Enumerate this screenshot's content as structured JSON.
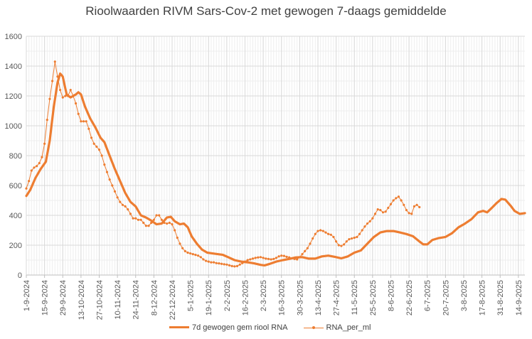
{
  "chart_data": {
    "type": "line",
    "title": "Rioolwaarden RIVM Sars-Cov-2 met gewogen 7-daags gemiddelde",
    "xlabel": "",
    "ylabel": "",
    "ylim": [
      0,
      1600
    ],
    "yticks": [
      0,
      200,
      400,
      600,
      800,
      1000,
      1200,
      1400,
      1600
    ],
    "xlim": [
      "1-9-2024",
      "19-9-2025"
    ],
    "xtick_labels": [
      "1-9-2024",
      "15-9-2024",
      "29-9-2024",
      "13-10-2024",
      "27-10-2024",
      "10-11-2024",
      "24-11-2024",
      "8-12-2024",
      "22-12-2024",
      "5-1-2025",
      "19-1-2025",
      "2-2-2025",
      "16-2-2025",
      "2-3-2025",
      "16-3-2025",
      "30-3-2025",
      "13-4-2025",
      "27-4-2025",
      "11-5-2025",
      "25-5-2025",
      "8-6-2025",
      "22-6-2025",
      "6-7-2025",
      "20-7-2025",
      "3-8-2025",
      "17-8-2025",
      "31-8-2025",
      "14-9-2025"
    ],
    "grid": true,
    "legend_position": "bottom",
    "series": [
      {
        "name": "7d gewogen gem riool RNA",
        "color": "#ED7D31",
        "marker": "none",
        "points": [
          [
            "1-9-2024",
            530
          ],
          [
            "4-9-2024",
            570
          ],
          [
            "8-9-2024",
            650
          ],
          [
            "12-9-2024",
            710
          ],
          [
            "16-9-2024",
            760
          ],
          [
            "19-9-2024",
            900
          ],
          [
            "22-9-2024",
            1120
          ],
          [
            "25-9-2024",
            1290
          ],
          [
            "27-9-2024",
            1350
          ],
          [
            "29-9-2024",
            1330
          ],
          [
            "2-10-2024",
            1210
          ],
          [
            "5-10-2024",
            1190
          ],
          [
            "9-10-2024",
            1210
          ],
          [
            "11-10-2024",
            1225
          ],
          [
            "13-10-2024",
            1210
          ],
          [
            "16-10-2024",
            1130
          ],
          [
            "20-10-2024",
            1050
          ],
          [
            "24-10-2024",
            990
          ],
          [
            "28-10-2024",
            920
          ],
          [
            "31-10-2024",
            890
          ],
          [
            "4-11-2024",
            800
          ],
          [
            "8-11-2024",
            710
          ],
          [
            "12-11-2024",
            630
          ],
          [
            "16-11-2024",
            550
          ],
          [
            "20-11-2024",
            490
          ],
          [
            "24-11-2024",
            460
          ],
          [
            "28-11-2024",
            400
          ],
          [
            "2-12-2024",
            385
          ],
          [
            "6-12-2024",
            365
          ],
          [
            "10-12-2024",
            340
          ],
          [
            "14-12-2024",
            345
          ],
          [
            "18-12-2024",
            385
          ],
          [
            "21-12-2024",
            390
          ],
          [
            "24-12-2024",
            360
          ],
          [
            "28-12-2024",
            340
          ],
          [
            "31-12-2024",
            345
          ],
          [
            "3-1-2025",
            320
          ],
          [
            "6-1-2025",
            260
          ],
          [
            "10-1-2025",
            210
          ],
          [
            "14-1-2025",
            170
          ],
          [
            "18-1-2025",
            150
          ],
          [
            "22-1-2025",
            145
          ],
          [
            "26-1-2025",
            140
          ],
          [
            "30-1-2025",
            135
          ],
          [
            "3-2-2025",
            120
          ],
          [
            "8-2-2025",
            100
          ],
          [
            "13-2-2025",
            90
          ],
          [
            "18-2-2025",
            85
          ],
          [
            "23-2-2025",
            78
          ],
          [
            "28-2-2025",
            68
          ],
          [
            "3-3-2025",
            65
          ],
          [
            "7-3-2025",
            75
          ],
          [
            "12-3-2025",
            90
          ],
          [
            "17-3-2025",
            100
          ],
          [
            "22-3-2025",
            108
          ],
          [
            "27-3-2025",
            118
          ],
          [
            "1-4-2025",
            120
          ],
          [
            "6-4-2025",
            110
          ],
          [
            "11-4-2025",
            110
          ],
          [
            "16-4-2025",
            125
          ],
          [
            "21-4-2025",
            130
          ],
          [
            "26-4-2025",
            122
          ],
          [
            "1-5-2025",
            112
          ],
          [
            "6-5-2025",
            125
          ],
          [
            "11-5-2025",
            150
          ],
          [
            "16-5-2025",
            165
          ],
          [
            "21-5-2025",
            210
          ],
          [
            "26-5-2025",
            255
          ],
          [
            "31-5-2025",
            285
          ],
          [
            "5-6-2025",
            295
          ],
          [
            "10-6-2025",
            295
          ],
          [
            "15-6-2025",
            285
          ],
          [
            "20-6-2025",
            275
          ],
          [
            "25-6-2025",
            260
          ],
          [
            "30-6-2025",
            225
          ],
          [
            "3-7-2025",
            205
          ],
          [
            "6-7-2025",
            205
          ],
          [
            "10-7-2025",
            235
          ],
          [
            "15-7-2025",
            248
          ],
          [
            "20-7-2025",
            255
          ],
          [
            "25-7-2025",
            280
          ],
          [
            "30-7-2025",
            320
          ],
          [
            "4-8-2025",
            345
          ],
          [
            "9-8-2025",
            375
          ],
          [
            "14-8-2025",
            420
          ],
          [
            "18-8-2025",
            430
          ],
          [
            "21-8-2025",
            420
          ],
          [
            "24-8-2025",
            445
          ],
          [
            "28-8-2025",
            480
          ],
          [
            "1-9-2025",
            510
          ],
          [
            "4-9-2025",
            505
          ],
          [
            "8-9-2025",
            465
          ],
          [
            "11-9-2025",
            430
          ],
          [
            "15-9-2025",
            410
          ],
          [
            "19-9-2025",
            415
          ]
        ]
      },
      {
        "name": "RNA_per_ml",
        "color": "#ED7D31",
        "marker": "dot",
        "points": [
          [
            "1-9-2024",
            580
          ],
          [
            "3-9-2024",
            630
          ],
          [
            "5-9-2024",
            700
          ],
          [
            "7-9-2024",
            720
          ],
          [
            "9-9-2024",
            730
          ],
          [
            "11-9-2024",
            750
          ],
          [
            "13-9-2024",
            790
          ],
          [
            "15-9-2024",
            880
          ],
          [
            "17-9-2024",
            1040
          ],
          [
            "19-9-2024",
            1180
          ],
          [
            "21-9-2024",
            1300
          ],
          [
            "23-9-2024",
            1430
          ],
          [
            "25-9-2024",
            1330
          ],
          [
            "27-9-2024",
            1240
          ],
          [
            "29-9-2024",
            1190
          ],
          [
            "1-10-2024",
            1200
          ],
          [
            "3-10-2024",
            1200
          ],
          [
            "5-10-2024",
            1240
          ],
          [
            "7-10-2024",
            1200
          ],
          [
            "9-10-2024",
            1150
          ],
          [
            "11-10-2024",
            1080
          ],
          [
            "13-10-2024",
            1030
          ],
          [
            "15-10-2024",
            1030
          ],
          [
            "17-10-2024",
            1030
          ],
          [
            "19-10-2024",
            980
          ],
          [
            "21-10-2024",
            920
          ],
          [
            "23-10-2024",
            880
          ],
          [
            "25-10-2024",
            860
          ],
          [
            "27-10-2024",
            840
          ],
          [
            "29-10-2024",
            800
          ],
          [
            "31-10-2024",
            740
          ],
          [
            "2-11-2024",
            690
          ],
          [
            "4-11-2024",
            640
          ],
          [
            "6-11-2024",
            600
          ],
          [
            "8-11-2024",
            560
          ],
          [
            "10-11-2024",
            520
          ],
          [
            "12-11-2024",
            490
          ],
          [
            "14-11-2024",
            470
          ],
          [
            "16-11-2024",
            460
          ],
          [
            "18-11-2024",
            440
          ],
          [
            "20-11-2024",
            410
          ],
          [
            "22-11-2024",
            380
          ],
          [
            "24-11-2024",
            380
          ],
          [
            "26-11-2024",
            370
          ],
          [
            "28-11-2024",
            370
          ],
          [
            "30-11-2024",
            350
          ],
          [
            "2-12-2024",
            330
          ],
          [
            "4-12-2024",
            330
          ],
          [
            "6-12-2024",
            350
          ],
          [
            "8-12-2024",
            370
          ],
          [
            "10-12-2024",
            400
          ],
          [
            "12-12-2024",
            400
          ],
          [
            "14-12-2024",
            370
          ],
          [
            "16-12-2024",
            350
          ],
          [
            "18-12-2024",
            345
          ],
          [
            "20-12-2024",
            350
          ],
          [
            "22-12-2024",
            340
          ],
          [
            "24-12-2024",
            300
          ],
          [
            "26-12-2024",
            250
          ],
          [
            "28-12-2024",
            210
          ],
          [
            "30-12-2024",
            180
          ],
          [
            "1-1-2025",
            160
          ],
          [
            "3-1-2025",
            150
          ],
          [
            "5-1-2025",
            145
          ],
          [
            "7-1-2025",
            140
          ],
          [
            "9-1-2025",
            135
          ],
          [
            "11-1-2025",
            130
          ],
          [
            "13-1-2025",
            120
          ],
          [
            "15-1-2025",
            105
          ],
          [
            "17-1-2025",
            95
          ],
          [
            "19-1-2025",
            90
          ],
          [
            "21-1-2025",
            85
          ],
          [
            "23-1-2025",
            85
          ],
          [
            "25-1-2025",
            80
          ],
          [
            "27-1-2025",
            78
          ],
          [
            "29-1-2025",
            75
          ],
          [
            "31-1-2025",
            72
          ],
          [
            "2-2-2025",
            70
          ],
          [
            "4-2-2025",
            65
          ],
          [
            "6-2-2025",
            60
          ],
          [
            "8-2-2025",
            58
          ],
          [
            "10-2-2025",
            60
          ],
          [
            "12-2-2025",
            70
          ],
          [
            "14-2-2025",
            80
          ],
          [
            "16-2-2025",
            90
          ],
          [
            "18-2-2025",
            100
          ],
          [
            "20-2-2025",
            105
          ],
          [
            "22-2-2025",
            110
          ],
          [
            "24-2-2025",
            115
          ],
          [
            "26-2-2025",
            118
          ],
          [
            "28-2-2025",
            120
          ],
          [
            "2-3-2025",
            115
          ],
          [
            "4-3-2025",
            110
          ],
          [
            "6-3-2025",
            108
          ],
          [
            "8-3-2025",
            105
          ],
          [
            "10-3-2025",
            108
          ],
          [
            "12-3-2025",
            115
          ],
          [
            "14-3-2025",
            125
          ],
          [
            "16-3-2025",
            130
          ],
          [
            "18-3-2025",
            128
          ],
          [
            "20-3-2025",
            122
          ],
          [
            "22-3-2025",
            118
          ],
          [
            "24-3-2025",
            112
          ],
          [
            "26-3-2025",
            108
          ],
          [
            "28-3-2025",
            105
          ],
          [
            "30-3-2025",
            120
          ],
          [
            "1-4-2025",
            140
          ],
          [
            "3-4-2025",
            160
          ],
          [
            "5-4-2025",
            180
          ],
          [
            "7-4-2025",
            210
          ],
          [
            "9-4-2025",
            245
          ],
          [
            "11-4-2025",
            275
          ],
          [
            "13-4-2025",
            295
          ],
          [
            "15-4-2025",
            300
          ],
          [
            "17-4-2025",
            295
          ],
          [
            "19-4-2025",
            285
          ],
          [
            "21-4-2025",
            275
          ],
          [
            "23-4-2025",
            270
          ],
          [
            "25-4-2025",
            255
          ],
          [
            "27-4-2025",
            225
          ],
          [
            "29-4-2025",
            200
          ],
          [
            "1-5-2025",
            195
          ],
          [
            "3-5-2025",
            205
          ],
          [
            "5-5-2025",
            225
          ],
          [
            "7-5-2025",
            240
          ],
          [
            "9-5-2025",
            245
          ],
          [
            "11-5-2025",
            250
          ],
          [
            "13-5-2025",
            255
          ],
          [
            "15-5-2025",
            275
          ],
          [
            "17-5-2025",
            300
          ],
          [
            "19-5-2025",
            325
          ],
          [
            "21-5-2025",
            345
          ],
          [
            "23-5-2025",
            360
          ],
          [
            "25-5-2025",
            380
          ],
          [
            "27-5-2025",
            410
          ],
          [
            "29-5-2025",
            440
          ],
          [
            "31-5-2025",
            435
          ],
          [
            "2-6-2025",
            420
          ],
          [
            "4-6-2025",
            425
          ],
          [
            "6-6-2025",
            450
          ],
          [
            "8-6-2025",
            475
          ],
          [
            "10-6-2025",
            500
          ],
          [
            "12-6-2025",
            515
          ],
          [
            "14-6-2025",
            525
          ],
          [
            "16-6-2025",
            500
          ],
          [
            "18-6-2025",
            470
          ],
          [
            "20-6-2025",
            435
          ],
          [
            "22-6-2025",
            415
          ],
          [
            "24-6-2025",
            410
          ],
          [
            "26-6-2025",
            460
          ],
          [
            "28-6-2025",
            470
          ],
          [
            "30-6-2025",
            455
          ]
        ]
      }
    ]
  }
}
